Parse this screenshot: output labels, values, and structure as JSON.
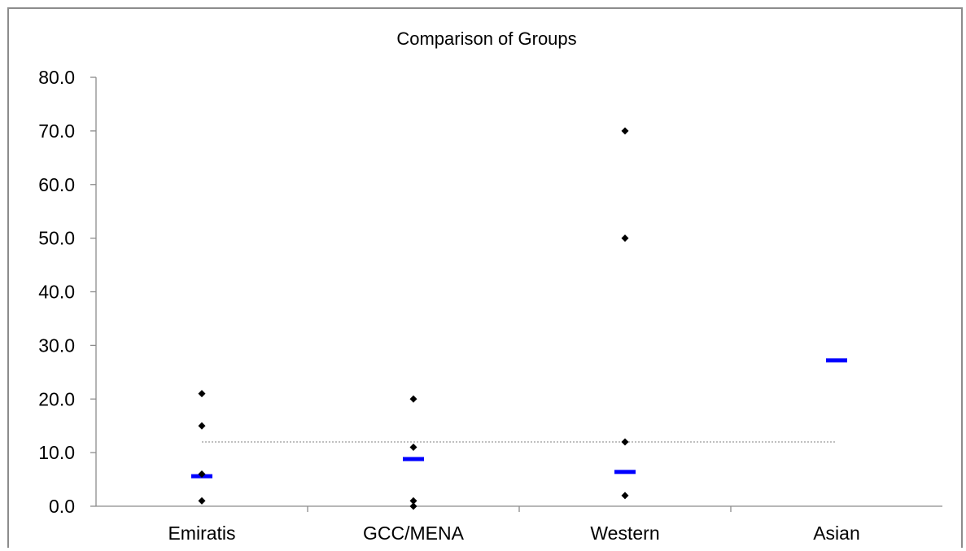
{
  "chart_data": {
    "type": "scatter",
    "title": "Comparison of Groups",
    "xlabel": "",
    "ylabel": "",
    "categories": [
      "Emiratis",
      "GCC/MENA",
      "Western",
      "Asian"
    ],
    "ylim": [
      0,
      80
    ],
    "yticks": [
      "0.0",
      "10.0",
      "20.0",
      "30.0",
      "40.0",
      "50.0",
      "60.0",
      "70.0",
      "80.0"
    ],
    "grid": false,
    "legend": "none",
    "points": [
      {
        "category": "Emiratis",
        "values": [
          21,
          15,
          6,
          1
        ]
      },
      {
        "category": "GCC/MENA",
        "values": [
          20,
          11,
          1,
          0
        ]
      },
      {
        "category": "Western",
        "values": [
          70,
          50,
          12,
          2
        ]
      },
      {
        "category": "Asian",
        "values": []
      }
    ],
    "means": [
      {
        "category": "Emiratis",
        "value": 5.6
      },
      {
        "category": "GCC/MENA",
        "value": 8.8
      },
      {
        "category": "Western",
        "value": 6.4
      },
      {
        "category": "Asian",
        "value": 27.2
      }
    ],
    "reference_line": {
      "value": 12,
      "style": "dotted"
    },
    "colors": {
      "points": "#000000",
      "means": "#0000ff",
      "reference_line": "#808080",
      "axis": "#8c8c8c"
    }
  }
}
